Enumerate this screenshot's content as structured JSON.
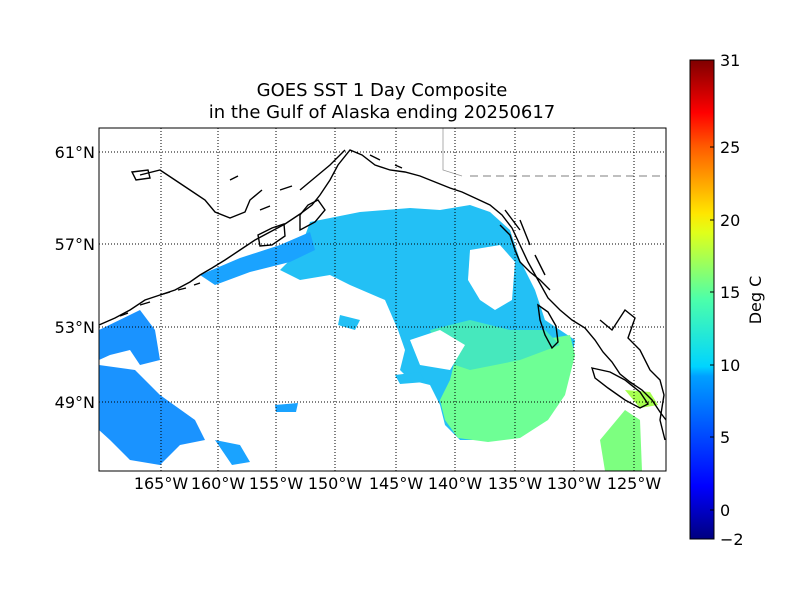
{
  "map": {
    "title_line1": "GOES SST 1 Day Composite",
    "title_line2": "in the Gulf of Alaska ending 20250617",
    "lat_labels": [
      "61°N",
      "57°N",
      "53°N",
      "49°N"
    ],
    "lon_labels": [
      "165°W",
      "160°W",
      "155°W",
      "150°W",
      "145°W",
      "140°W",
      "135°W",
      "130°W",
      "125°W"
    ],
    "colors": {
      "land_outline": "#000000",
      "gridline": "#000000",
      "ocean_blue": "#1a9bff",
      "ocean_cyan": "#23c0f5",
      "ocean_teal": "#3ee0c8",
      "ocean_green": "#7dff80",
      "border_dash": "#999999"
    }
  },
  "colorbar": {
    "label": "Deg C",
    "ticks": [
      "31",
      "25",
      "20",
      "15",
      "10",
      "5",
      "0",
      "−2"
    ],
    "min": -2,
    "max": 31
  }
}
